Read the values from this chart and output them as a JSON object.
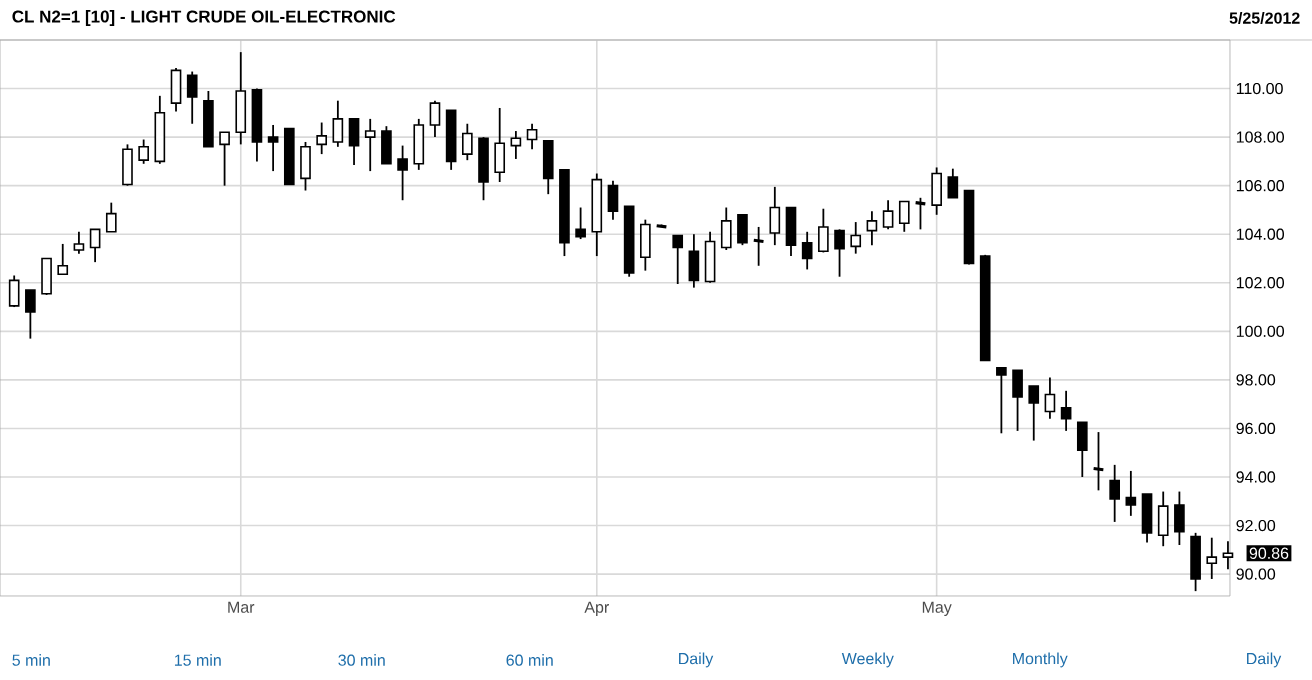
{
  "chart_data": {
    "type": "candlestick",
    "title": "CL N2=1 [10] - LIGHT CRUDE OIL-ELECTRONIC",
    "annotations": [
      "5/25/2012",
      "90.86",
      "5 min",
      "15 min",
      "30 min",
      "60 min",
      "Daily",
      "Weekly",
      "Monthly",
      "Daily"
    ],
    "categories": [
      null,
      null,
      null,
      null,
      null,
      null,
      null,
      null,
      null,
      null,
      null,
      null,
      null,
      null,
      "Mar",
      null,
      null,
      null,
      null,
      null,
      null,
      null,
      null,
      null,
      null,
      null,
      null,
      null,
      null,
      null,
      null,
      null,
      null,
      null,
      null,
      null,
      "Apr",
      null,
      null,
      null,
      null,
      null,
      null,
      null,
      null,
      null,
      null,
      null,
      null,
      null,
      null,
      null,
      null,
      null,
      null,
      null,
      null,
      "May",
      null,
      null,
      null,
      null,
      null,
      null,
      null,
      null,
      null,
      null,
      null,
      null,
      null,
      null,
      null,
      null,
      null,
      null
    ],
    "ohlc": [
      [
        101.05,
        102.3,
        101.0,
        102.1
      ],
      [
        101.7,
        101.7,
        99.7,
        100.8
      ],
      [
        101.55,
        103.0,
        101.5,
        103.0
      ],
      [
        102.35,
        103.6,
        102.35,
        102.7
      ],
      [
        103.35,
        104.1,
        103.2,
        103.6
      ],
      [
        103.45,
        104.2,
        102.85,
        104.2
      ],
      [
        104.1,
        105.3,
        104.1,
        104.85
      ],
      [
        106.05,
        107.7,
        106.0,
        107.5
      ],
      [
        107.05,
        107.9,
        106.9,
        107.6
      ],
      [
        107.0,
        109.7,
        106.9,
        109.0
      ],
      [
        109.4,
        110.85,
        109.05,
        110.75
      ],
      [
        110.55,
        110.7,
        108.55,
        109.65
      ],
      [
        109.5,
        109.9,
        107.6,
        107.6
      ],
      [
        107.7,
        108.2,
        106.0,
        108.2
      ],
      [
        108.2,
        111.5,
        107.7,
        109.9
      ],
      [
        109.95,
        110.0,
        107.0,
        107.8
      ],
      [
        108.0,
        108.5,
        106.6,
        107.8
      ],
      [
        108.35,
        108.35,
        106.05,
        106.05
      ],
      [
        106.3,
        107.8,
        105.8,
        107.6
      ],
      [
        107.7,
        108.6,
        107.3,
        108.05
      ],
      [
        107.8,
        109.5,
        107.6,
        108.75
      ],
      [
        108.75,
        108.75,
        106.85,
        107.65
      ],
      [
        108.0,
        108.75,
        106.6,
        108.25
      ],
      [
        108.25,
        108.45,
        106.9,
        106.9
      ],
      [
        107.1,
        107.65,
        105.4,
        106.65
      ],
      [
        106.9,
        108.75,
        106.65,
        108.5
      ],
      [
        108.5,
        109.5,
        108.0,
        109.4
      ],
      [
        109.1,
        109.1,
        106.65,
        107.0
      ],
      [
        107.3,
        108.55,
        107.05,
        108.15
      ],
      [
        107.95,
        108.0,
        105.4,
        106.15
      ],
      [
        106.55,
        109.2,
        106.15,
        107.75
      ],
      [
        107.65,
        108.25,
        107.1,
        107.95
      ],
      [
        107.9,
        108.55,
        107.5,
        108.3
      ],
      [
        107.85,
        107.85,
        105.65,
        106.3
      ],
      [
        106.65,
        106.65,
        103.1,
        103.65
      ],
      [
        104.2,
        105.1,
        103.8,
        103.9
      ],
      [
        104.1,
        106.5,
        103.1,
        106.25
      ],
      [
        106.0,
        106.2,
        104.6,
        104.95
      ],
      [
        105.15,
        105.15,
        102.25,
        102.4
      ],
      [
        103.05,
        104.6,
        102.5,
        104.4
      ],
      [
        104.35,
        104.4,
        104.3,
        104.3
      ],
      [
        103.95,
        103.95,
        101.95,
        103.45
      ],
      [
        103.3,
        104.0,
        101.8,
        102.1
      ],
      [
        102.05,
        104.1,
        102.0,
        103.7
      ],
      [
        103.45,
        105.1,
        103.35,
        104.55
      ],
      [
        104.8,
        104.8,
        103.55,
        103.65
      ],
      [
        103.75,
        104.3,
        102.7,
        103.7
      ],
      [
        104.05,
        105.95,
        103.55,
        105.1
      ],
      [
        105.1,
        105.1,
        103.1,
        103.55
      ],
      [
        103.65,
        104.1,
        102.55,
        103.0
      ],
      [
        103.3,
        105.05,
        103.25,
        104.3
      ],
      [
        104.15,
        104.2,
        102.25,
        103.4
      ],
      [
        103.5,
        104.5,
        103.2,
        103.95
      ],
      [
        104.15,
        104.95,
        103.55,
        104.55
      ],
      [
        104.3,
        105.4,
        104.2,
        104.95
      ],
      [
        104.45,
        105.35,
        104.1,
        105.35
      ],
      [
        105.3,
        105.5,
        104.2,
        105.25
      ],
      [
        105.2,
        106.75,
        104.8,
        106.5
      ],
      [
        106.35,
        106.7,
        105.5,
        105.5
      ],
      [
        105.8,
        105.8,
        102.75,
        102.8
      ],
      [
        103.1,
        103.15,
        98.8,
        98.8
      ],
      [
        98.5,
        98.5,
        95.8,
        98.2
      ],
      [
        98.4,
        98.4,
        95.9,
        97.3
      ],
      [
        97.75,
        97.75,
        95.5,
        97.05
      ],
      [
        96.7,
        98.1,
        96.4,
        97.4
      ],
      [
        96.85,
        97.55,
        95.9,
        96.4
      ],
      [
        96.25,
        96.25,
        94.0,
        95.1
      ],
      [
        94.35,
        95.85,
        93.45,
        94.3
      ],
      [
        93.85,
        94.5,
        92.15,
        93.1
      ],
      [
        93.15,
        94.25,
        92.4,
        92.85
      ],
      [
        93.3,
        93.3,
        91.3,
        91.7
      ],
      [
        91.6,
        93.4,
        91.15,
        92.8
      ],
      [
        92.85,
        93.4,
        91.2,
        91.75
      ],
      [
        91.55,
        91.7,
        89.3,
        89.8
      ],
      [
        90.45,
        91.5,
        89.8,
        90.7
      ],
      [
        90.7,
        91.35,
        90.2,
        90.86
      ]
    ],
    "ylim": [
      89.1,
      112
    ],
    "yticks": [
      {
        "value": 90,
        "label": "90.00"
      },
      {
        "value": 92,
        "label": "92.00"
      },
      {
        "value": 94,
        "label": "94.00"
      },
      {
        "value": 96,
        "label": "96.00"
      },
      {
        "value": 98,
        "label": "98.00"
      },
      {
        "value": 100,
        "label": "100.00"
      },
      {
        "value": 102,
        "label": "102.00"
      },
      {
        "value": 104,
        "label": "104.00"
      },
      {
        "value": 106,
        "label": "106.00"
      },
      {
        "value": 108,
        "label": "108.00"
      },
      {
        "value": 110,
        "label": "110.00"
      }
    ],
    "grid": true
  }
}
